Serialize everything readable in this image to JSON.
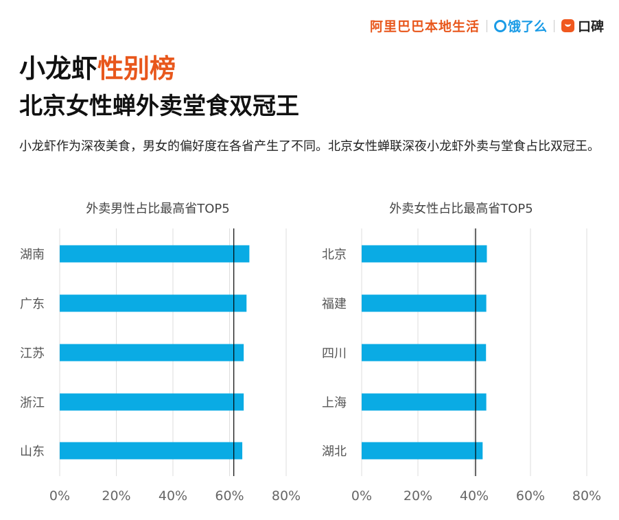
{
  "brand": {
    "alibaba": "阿里巴巴本地生活",
    "eleme": "饿了么",
    "koubei": "口碑"
  },
  "title": {
    "part1": "小龙虾",
    "part2": "性别榜",
    "subtitle": "北京女性蝉外卖堂食双冠王"
  },
  "description": "小龙虾作为深夜美食，男女的偏好度在各省产生了不同。北京女性蝉联深夜小龙虾外卖与堂食占比双冠王。",
  "colors": {
    "bar": "#0aabe4",
    "accent": "#e8571c",
    "gridline": "#dddddd",
    "refline": "#000000"
  },
  "chart_data": [
    {
      "type": "bar",
      "orientation": "horizontal",
      "title": "外卖男性占比最高省TOP5",
      "categories": [
        "湖南",
        "广东",
        "江苏",
        "浙江",
        "山东"
      ],
      "values": [
        67,
        66,
        65,
        65,
        64.5
      ],
      "reference_line": 61.5,
      "xlim": [
        0,
        80
      ],
      "ticks": [
        "0%",
        "20%",
        "40%",
        "60%",
        "80%"
      ],
      "grid": true
    },
    {
      "type": "bar",
      "orientation": "horizontal",
      "title": "外卖女性占比最高省TOP5",
      "categories": [
        "北京",
        "福建",
        "四川",
        "上海",
        "湖北"
      ],
      "values": [
        44.5,
        44.3,
        44.2,
        44.3,
        43
      ],
      "reference_line": 40.5,
      "xlim": [
        0,
        80
      ],
      "ticks": [
        "0%",
        "20%",
        "40%",
        "60%",
        "80%"
      ],
      "grid": true
    }
  ]
}
